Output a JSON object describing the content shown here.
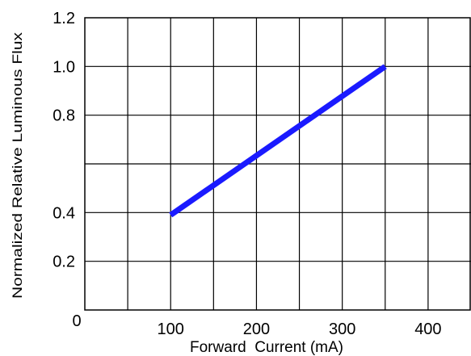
{
  "chart_data": {
    "type": "line",
    "title": "",
    "xlabel": "Forward  Current (mA)",
    "ylabel": "Normalized Relative Luminous Flux",
    "xlim": [
      0,
      450
    ],
    "ylim": [
      0,
      1.2
    ],
    "x_tick_labels": [
      "0",
      "100",
      "200",
      "300",
      "400"
    ],
    "x_tick_values": [
      0,
      100,
      200,
      300,
      400
    ],
    "y_tick_labels": [
      "0.2",
      "0.4",
      "0.8",
      "1.0",
      "1.2"
    ],
    "y_tick_values": [
      0.2,
      0.4,
      0.8,
      1.0,
      1.2
    ],
    "grid": true,
    "line_color": "#1a1aff",
    "series": [
      {
        "x": [
          100,
          350
        ],
        "y": [
          0.39,
          1.0
        ]
      }
    ]
  }
}
